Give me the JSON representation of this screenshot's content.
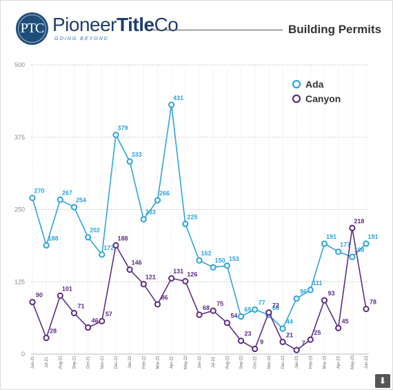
{
  "header": {
    "logo_initials": "PTC",
    "brand_part1": "Pioneer",
    "brand_part2": "Title",
    "brand_part3": "Co",
    "tagline": "GOING BEYOND",
    "title": "Building Permits"
  },
  "colors": {
    "ada": "#2ba3dc",
    "canyon": "#5b2c83",
    "brand": "#1f4e79"
  },
  "download_icon": "download-arrow-icon",
  "chart_data": {
    "type": "line",
    "title": "Building Permits",
    "xlabel": "",
    "ylabel": "",
    "ylim": [
      0,
      500
    ],
    "yticks": [
      0,
      125,
      250,
      375,
      500
    ],
    "grid": true,
    "legend_position": "top-right",
    "categories": [
      "Jun-21",
      "Jul-21",
      "Aug-21",
      "Sep-21",
      "Oct-21",
      "Nov-21",
      "Dec-21",
      "Jan-22",
      "Feb-22",
      "Mar-22",
      "Apr-22",
      "May-22",
      "Jun-22",
      "Jul-22",
      "Aug-22",
      "Sep-22",
      "Oct-22",
      "Nov-22",
      "Dec-22",
      "Jan-23",
      "Feb-23",
      "Mar-23",
      "Apr-23",
      "May-23",
      "Jun-23"
    ],
    "series": [
      {
        "name": "Ada",
        "color": "#2ba3dc",
        "values": [
          270,
          188,
          267,
          254,
          202,
          172,
          379,
          333,
          233,
          266,
          431,
          225,
          162,
          150,
          153,
          65,
          77,
          68,
          44,
          96,
          111,
          191,
          177,
          168,
          191
        ]
      },
      {
        "name": "Canyon",
        "color": "#5b2c83",
        "values": [
          90,
          28,
          101,
          71,
          46,
          57,
          188,
          146,
          121,
          86,
          131,
          126,
          68,
          75,
          54,
          23,
          9,
          72,
          21,
          7,
          25,
          93,
          45,
          218,
          78
        ]
      }
    ]
  }
}
